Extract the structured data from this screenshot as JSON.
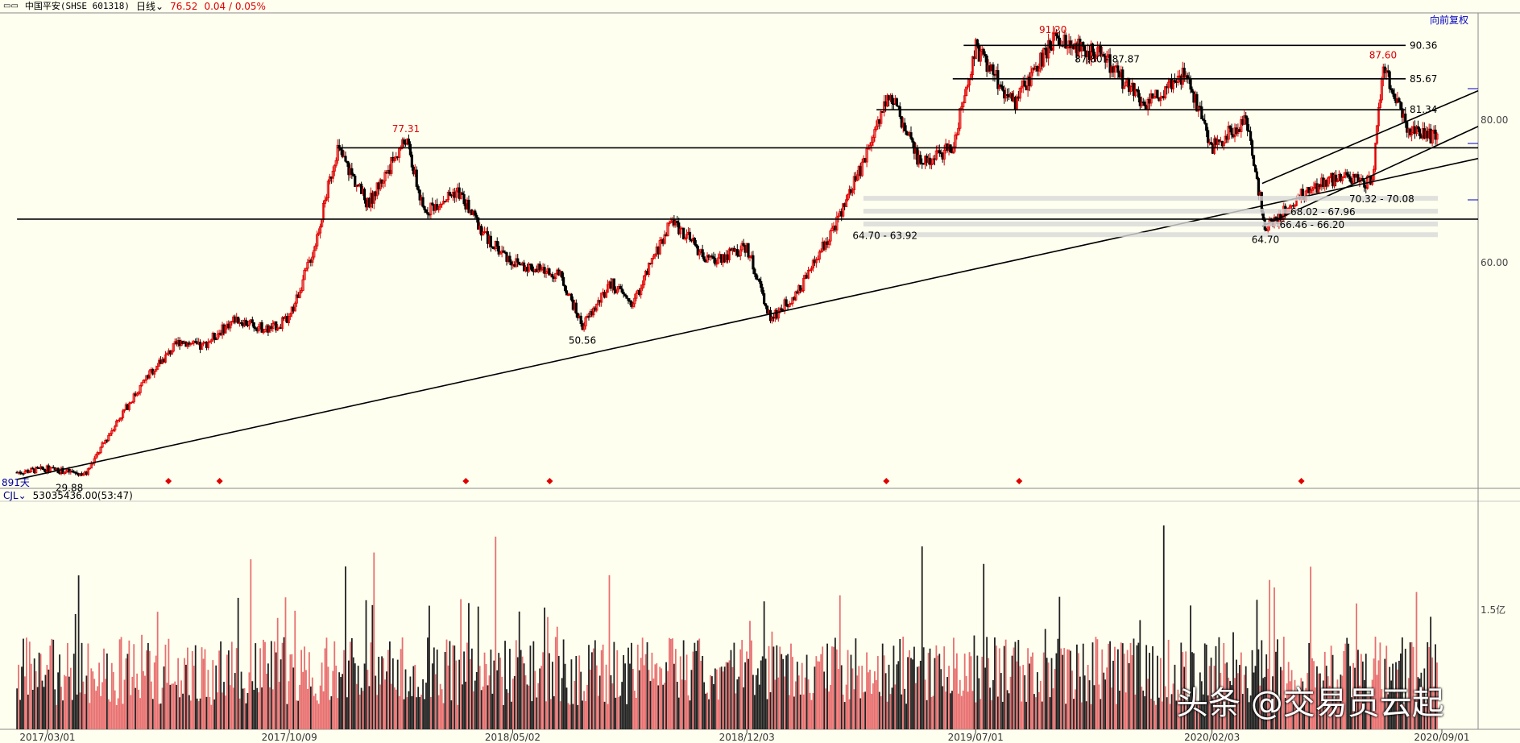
{
  "header": {
    "icon": "double-square-icon",
    "title": "中国平安(SHSE 601318)",
    "period": "日线",
    "price": "76.52",
    "change": "0.04 / 0.05%"
  },
  "adjust_label": "向前复权",
  "days_label": "891天",
  "volume_header": {
    "indicator": "CJL",
    "value": "53035436.00(53:47)"
  },
  "watermark": "头条 @交易员云起",
  "colors": {
    "up": "#e00000",
    "down": "#000000",
    "bg": "#fffff0",
    "vol_up": "#e87070",
    "vol_down": "#202020"
  },
  "chart_data": {
    "type": "candlestick",
    "x_ticks": [
      "2017/03/01",
      "2017/10/09",
      "2018/05/02",
      "2018/12/03",
      "2019/07/01",
      "2020/02/03",
      "2020/09/01"
    ],
    "y_ticks": [
      "80.00",
      "60.00"
    ],
    "volume_tick": "1.5亿",
    "price_path": [
      [
        "2017/02/01",
        30.5
      ],
      [
        "2017/03/01",
        31.0
      ],
      [
        "2017/04/05",
        30.2
      ],
      [
        "2017/05/01",
        37.0
      ],
      [
        "2017/06/01",
        44.0
      ],
      [
        "2017/07/01",
        49.0
      ],
      [
        "2017/07/20",
        48.0
      ],
      [
        "2017/08/20",
        52.0
      ],
      [
        "2017/09/20",
        50.5
      ],
      [
        "2017/10/09",
        52.0
      ],
      [
        "2017/11/01",
        62.0
      ],
      [
        "2017/11/22",
        76.0
      ],
      [
        "2017/12/20",
        68.0
      ],
      [
        "2018/01/24",
        77.31
      ],
      [
        "2018/02/09",
        67.0
      ],
      [
        "2018/03/12",
        70.0
      ],
      [
        "2018/04/10",
        63.0
      ],
      [
        "2018/05/02",
        60.0
      ],
      [
        "2018/06/15",
        58.0
      ],
      [
        "2018/07/05",
        51.0
      ],
      [
        "2018/08/01",
        57.0
      ],
      [
        "2018/08/20",
        54.0
      ],
      [
        "2018/09/25",
        66.0
      ],
      [
        "2018/10/29",
        60.0
      ],
      [
        "2018/12/03",
        62.0
      ],
      [
        "2018/12/25",
        52.0
      ],
      [
        "2019/01/20",
        56.0
      ],
      [
        "2019/02/25",
        66.0
      ],
      [
        "2019/03/20",
        74.0
      ],
      [
        "2019/04/12",
        84.0
      ],
      [
        "2019/05/10",
        74.0
      ],
      [
        "2019/06/10",
        76.0
      ],
      [
        "2019/06/25",
        86.0
      ],
      [
        "2019/07/01",
        90.0
      ],
      [
        "2019/08/05",
        82.0
      ],
      [
        "2019/09/10",
        91.2
      ],
      [
        "2019/10/25",
        89.0
      ],
      [
        "2019/12/02",
        82.0
      ],
      [
        "2020/01/10",
        86.5
      ],
      [
        "2020/02/03",
        76.0
      ],
      [
        "2020/03/05",
        80.0
      ],
      [
        "2020/03/23",
        64.7
      ],
      [
        "2020/04/30",
        70.0
      ],
      [
        "2020/05/30",
        72.0
      ],
      [
        "2020/06/29",
        71.0
      ],
      [
        "2020/07/09",
        87.6
      ],
      [
        "2020/07/31",
        79.0
      ],
      [
        "2020/09/01",
        77.0
      ],
      [
        "2020/09/18",
        76.52
      ]
    ],
    "annotations": [
      {
        "date": "2017/03/21",
        "price": 29.88,
        "label": "29.88",
        "color": "#000000"
      },
      {
        "date": "2018/01/24",
        "price": 77.31,
        "label": "77.31",
        "color": "#e00000"
      },
      {
        "date": "2018/07/05",
        "price": 50.56,
        "label": "50.56",
        "color": "#000000"
      },
      {
        "date": "2019/09/10",
        "price": 91.2,
        "label": "91.20",
        "color": "#e00000"
      },
      {
        "date": "2020/03/23",
        "price": 64.7,
        "label": "64.70",
        "color": "#000000"
      },
      {
        "date": "2020/07/09",
        "price": 87.6,
        "label": "87.60",
        "color": "#e00000"
      }
    ],
    "horizontal_levels": [
      {
        "label": "90.36",
        "price": 90.36,
        "from": "2019/06/20"
      },
      {
        "label": "85.67",
        "price": 85.67,
        "from": "2019/06/10"
      },
      {
        "label": "81.34",
        "price": 81.34,
        "from": "2019/04/01"
      }
    ],
    "range_labels": [
      "87.80 - 87.87",
      "70.32 - 70.08",
      "68.02 - 67.96",
      "66.46 - 66.20",
      "64.70 - 63.92"
    ],
    "trendlines": [
      {
        "from": [
          "2017/11/22",
          76.0
        ],
        "to": [
          "2020/09/18",
          76.0
        ]
      },
      {
        "from": [
          "2017/02/01",
          66.0
        ],
        "to": [
          "2020/09/18",
          66.0
        ]
      },
      {
        "from": [
          "2017/02/01",
          29.5
        ],
        "to": [
          "2020/09/18",
          74.5
        ]
      },
      {
        "from": [
          "2020/03/20",
          71.0
        ],
        "to": [
          "2020/09/18",
          84.0
        ]
      },
      {
        "from": [
          "2020/03/20",
          65.0
        ],
        "to": [
          "2020/09/18",
          79.0
        ]
      }
    ],
    "signal_markers": [
      "2017/06/20",
      "2017/08/06",
      "2018/03/20",
      "2018/06/05",
      "2019/04/10",
      "2019/08/10",
      "2020/04/25"
    ]
  }
}
